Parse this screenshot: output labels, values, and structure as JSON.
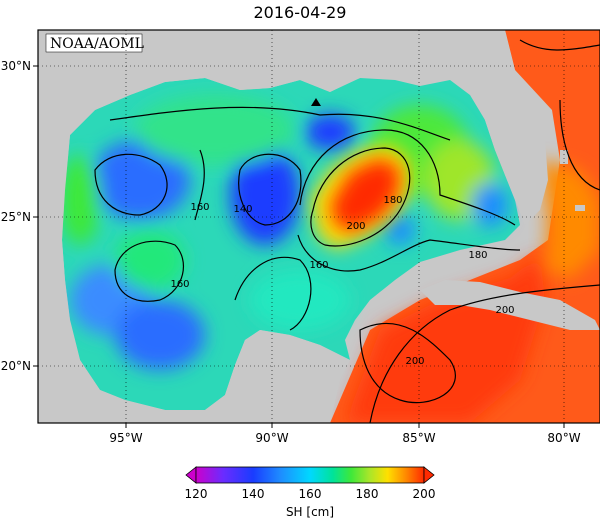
{
  "title": "2016-04-29",
  "credit": "NOAA/AOML",
  "x_ticks": [
    "95°W",
    "90°W",
    "85°W",
    "80°W"
  ],
  "y_ticks": [
    "30°N",
    "25°N",
    "20°N"
  ],
  "colorbar": {
    "label": "SH [cm]",
    "ticks": [
      "120",
      "140",
      "160",
      "180",
      "200"
    ],
    "colors": [
      "#cc00cc",
      "#6a2cff",
      "#1a3cff",
      "#1e8cff",
      "#00d8ff",
      "#00e39a",
      "#3ee83a",
      "#a8e62a",
      "#ffe000",
      "#ff8a00",
      "#ff2a00"
    ]
  },
  "contour_labels": [
    "160",
    "140",
    "200",
    "180",
    "160",
    "180",
    "160",
    "200",
    "200"
  ],
  "colors": {
    "land": "#c8c8c8",
    "frame": "#000000"
  }
}
